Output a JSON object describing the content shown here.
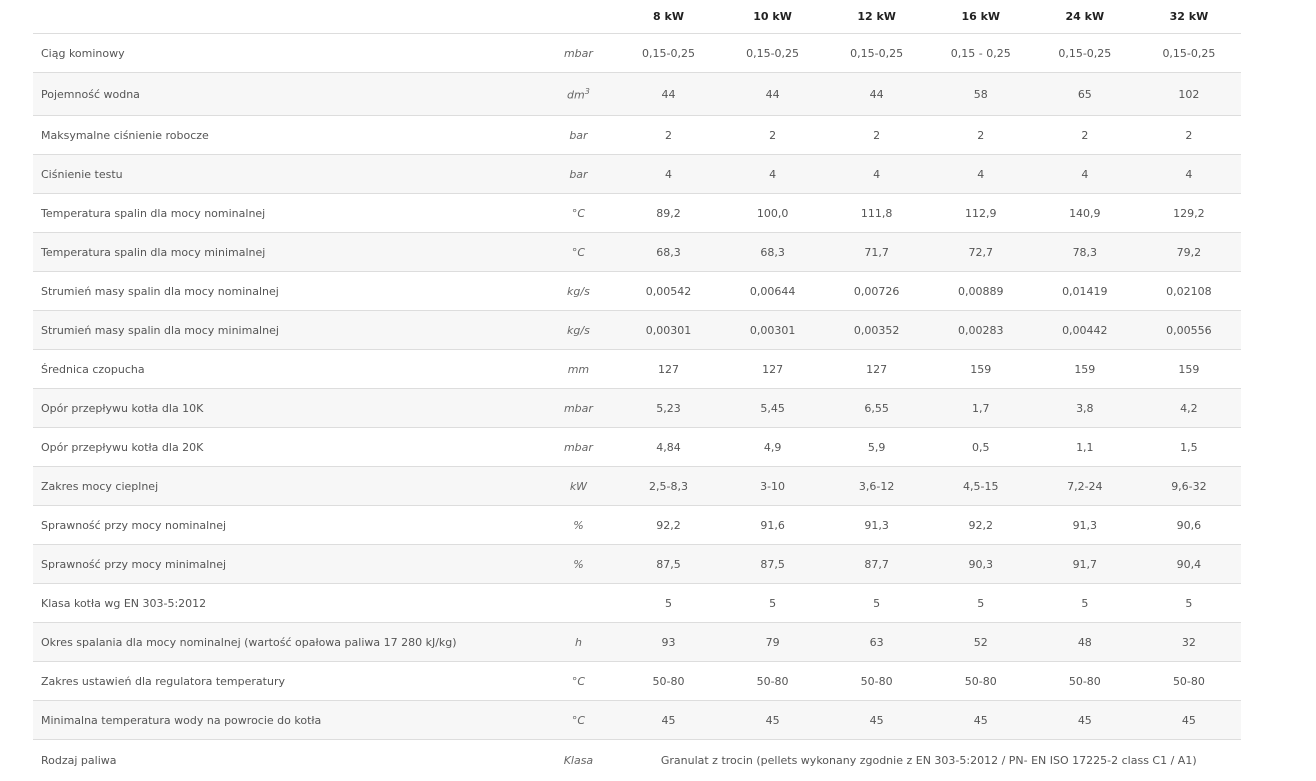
{
  "table": {
    "headers": [
      "",
      "",
      "8 kW",
      "10 kW",
      "12 kW",
      "16 kW",
      "24 kW",
      "32 kW"
    ],
    "rows": [
      {
        "label": "Ciąg kominowy",
        "unit": "mbar",
        "values": [
          "0,15-0,25",
          "0,15-0,25",
          "0,15-0,25",
          "0,15 - 0,25",
          "0,15-0,25",
          "0,15-0,25"
        ]
      },
      {
        "label": "Pojemność wodna",
        "unit": "dm",
        "unit_sup": "3",
        "values": [
          "44",
          "44",
          "44",
          "58",
          "65",
          "102"
        ]
      },
      {
        "label": "Maksymalne ciśnienie robocze",
        "unit": "bar",
        "values": [
          "2",
          "2",
          "2",
          "2",
          "2",
          "2"
        ]
      },
      {
        "label": "Ciśnienie testu",
        "unit": "bar",
        "values": [
          "4",
          "4",
          "4",
          "4",
          "4",
          "4"
        ]
      },
      {
        "label": "Temperatura spalin dla mocy nominalnej",
        "unit": "°C",
        "values": [
          "89,2",
          "100,0",
          "111,8",
          "112,9",
          "140,9",
          "129,2"
        ]
      },
      {
        "label": "Temperatura spalin dla mocy minimalnej",
        "unit": "°C",
        "values": [
          "68,3",
          "68,3",
          "71,7",
          "72,7",
          "78,3",
          "79,2"
        ]
      },
      {
        "label": "Strumień masy spalin dla mocy nominalnej",
        "unit": "kg/s",
        "values": [
          "0,00542",
          "0,00644",
          "0,00726",
          "0,00889",
          "0,01419",
          "0,02108"
        ]
      },
      {
        "label": "Strumień masy spalin dla mocy minimalnej",
        "unit": "kg/s",
        "values": [
          "0,00301",
          "0,00301",
          "0,00352",
          "0,00283",
          "0,00442",
          "0,00556"
        ]
      },
      {
        "label": "Średnica czopucha",
        "unit": "mm",
        "values": [
          "127",
          "127",
          "127",
          "159",
          "159",
          "159"
        ]
      },
      {
        "label": "Opór przepływu kotła dla 10K",
        "unit": "mbar",
        "values": [
          "5,23",
          "5,45",
          "6,55",
          "1,7",
          "3,8",
          "4,2"
        ]
      },
      {
        "label": "Opór przepływu kotła dla 20K",
        "unit": "mbar",
        "values": [
          "4,84",
          "4,9",
          "5,9",
          "0,5",
          "1,1",
          "1,5"
        ]
      },
      {
        "label": "Zakres mocy cieplnej",
        "unit": "kW",
        "values": [
          "2,5-8,3",
          "3-10",
          "3,6-12",
          "4,5-15",
          "7,2-24",
          "9,6-32"
        ]
      },
      {
        "label": "Sprawność przy mocy nominalnej",
        "unit": "%",
        "values": [
          "92,2",
          "91,6",
          "91,3",
          "92,2",
          "91,3",
          "90,6"
        ]
      },
      {
        "label": "Sprawność przy mocy minimalnej",
        "unit": "%",
        "values": [
          "87,5",
          "87,5",
          "87,7",
          "90,3",
          "91,7",
          "90,4"
        ]
      },
      {
        "label": "Klasa kotła wg EN 303-5:2012",
        "unit": "",
        "values": [
          "5",
          "5",
          "5",
          "5",
          "5",
          "5"
        ]
      },
      {
        "label": "Okres spalania dla mocy nominalnej (wartość opałowa paliwa 17 280 kJ/kg)",
        "unit": "h",
        "values": [
          "93",
          "79",
          "63",
          "52",
          "48",
          "32"
        ]
      },
      {
        "label": "Zakres ustawień dla regulatora temperatury",
        "unit": "°C",
        "values": [
          "50-80",
          "50-80",
          "50-80",
          "50-80",
          "50-80",
          "50-80"
        ]
      },
      {
        "label": "Minimalna temperatura wody na powrocie do kotła",
        "unit": "°C",
        "values": [
          "45",
          "45",
          "45",
          "45",
          "45",
          "45"
        ]
      }
    ],
    "fuel_row": {
      "label": "Rodzaj paliwa",
      "unit": "Klasa",
      "value": "Granulat z trocin (pellets wykonany zgodnie z EN 303-5:2012 / PN- EN ISO 17225-2 class C1 / A1)"
    }
  }
}
